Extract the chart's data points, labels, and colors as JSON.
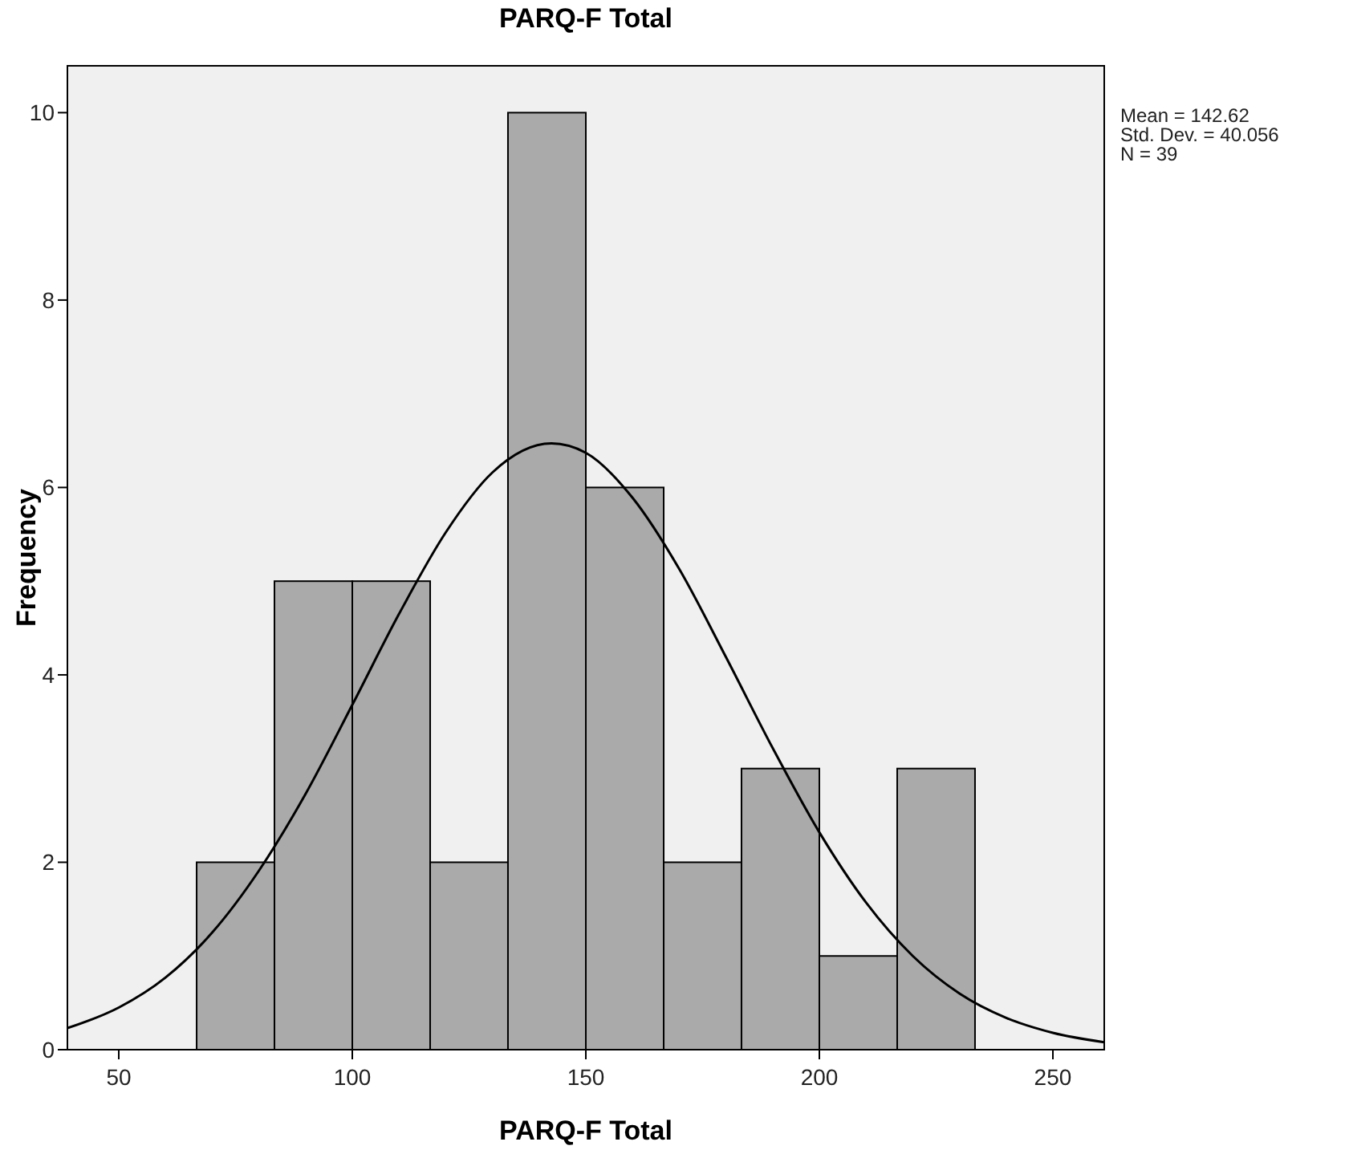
{
  "chart_data": {
    "type": "histogram",
    "title": "PARQ-F Total",
    "xlabel": "PARQ-F Total",
    "ylabel": "Frequency",
    "bins": [
      66.67,
      83.33,
      100,
      116.67,
      133.33,
      150,
      166.67,
      183.33,
      200,
      216.67,
      233.33
    ],
    "values": [
      2,
      5,
      5,
      2,
      10,
      6,
      2,
      3,
      1,
      3
    ],
    "color": "#aaaaaa",
    "series": [
      {
        "type": "line",
        "color": "#000000",
        "x": [
          39,
          50,
          60,
          70,
          80,
          90,
          100,
          110,
          120,
          130,
          142.62,
          150,
          160,
          170,
          180,
          190,
          200,
          210,
          220,
          230,
          240,
          250,
          261
        ],
        "values": [
          0.23,
          0.45,
          0.77,
          1.25,
          1.91,
          2.73,
          3.68,
          4.65,
          5.52,
          6.16,
          6.47,
          6.37,
          5.89,
          5.13,
          4.19,
          3.22,
          2.32,
          1.57,
          1.0,
          0.6,
          0.34,
          0.18,
          0.08
        ]
      }
    ],
    "xlim": [
      39,
      261
    ],
    "xticks": [
      50,
      100,
      150,
      200,
      250
    ],
    "ylim": [
      0,
      10.5
    ],
    "yticks": [
      0,
      2,
      4,
      6,
      8,
      10
    ],
    "grid": false,
    "annotations": [
      "Mean = 142.62",
      "Std. Dev. = 40.056",
      "N = 39"
    ]
  }
}
